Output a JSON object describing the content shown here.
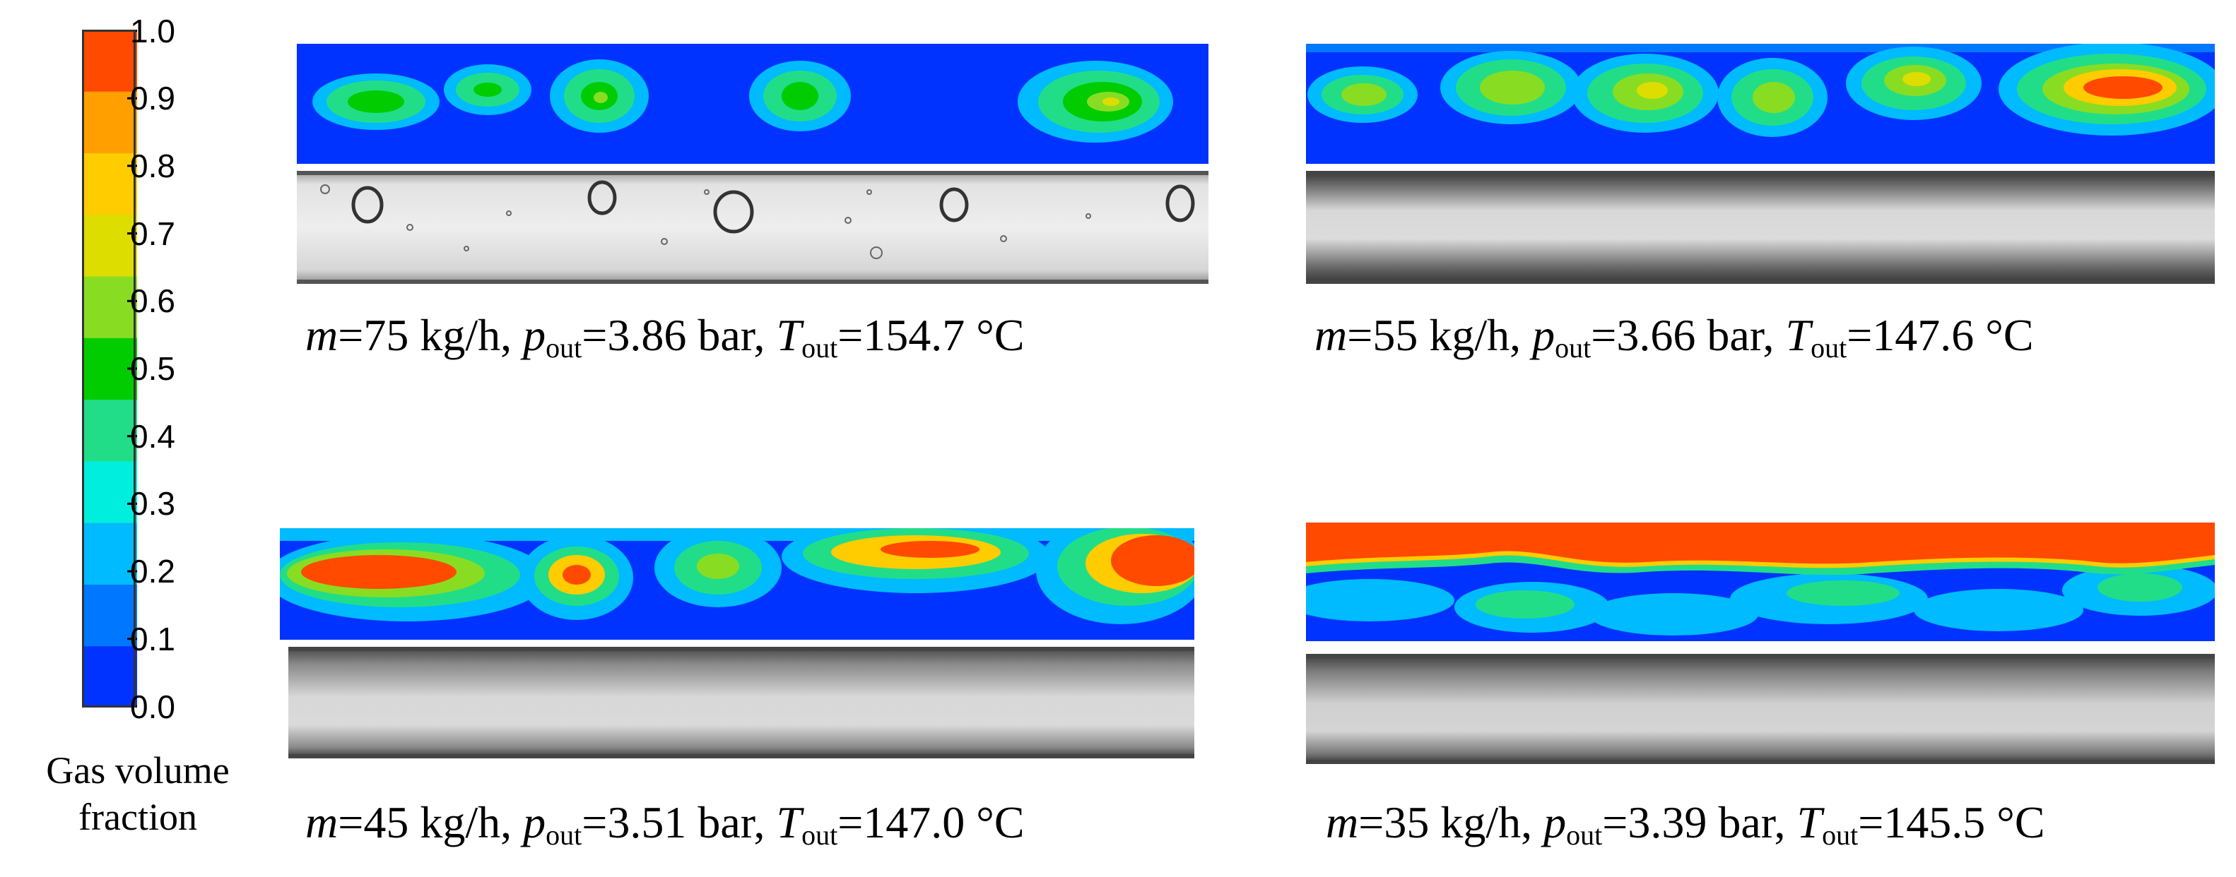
{
  "colorbar": {
    "title_line1": "Gas volume",
    "title_line2": "fraction",
    "ticks": [
      "1.0",
      "0.9",
      "0.8",
      "0.7",
      "0.6",
      "0.5",
      "0.4",
      "0.3",
      "0.2",
      "0.1",
      "0.0"
    ],
    "colors": [
      "#0033ff",
      "#0077ff",
      "#00bbff",
      "#00eedd",
      "#22dd88",
      "#00cc00",
      "#88dd22",
      "#dddd00",
      "#ffcc00",
      "#ffa000",
      "#ff4a00"
    ]
  },
  "panels": [
    {
      "id": "p1",
      "caption": {
        "m_sym": "m",
        "m_val": "=75 kg/h, ",
        "p_sym": "p",
        "p_sub": "out",
        "p_val": "=3.86 bar, ",
        "t_sym": "T",
        "t_sub": "out",
        "t_val": "=154.7 °C"
      }
    },
    {
      "id": "p2",
      "caption": {
        "m_sym": "m",
        "m_val": "=55 kg/h, ",
        "p_sym": "p",
        "p_sub": "out",
        "p_val": "=3.66 bar, ",
        "t_sym": "T",
        "t_sub": "out",
        "t_val": "=147.6 °C"
      }
    },
    {
      "id": "p3",
      "caption": {
        "m_sym": "m",
        "m_val": "=45 kg/h, ",
        "p_sym": "p",
        "p_sub": "out",
        "p_val": "=3.51 bar, ",
        "t_sym": "T",
        "t_sub": "out",
        "t_val": "=147.0 °C"
      }
    },
    {
      "id": "p4",
      "caption": {
        "m_sym": "m",
        "m_val": "=35 kg/h, ",
        "p_sym": "p",
        "p_sub": "out",
        "p_val": "=3.39 bar, ",
        "t_sym": "T",
        "t_sub": "out",
        "t_val": "=145.5 °C"
      }
    }
  ]
}
